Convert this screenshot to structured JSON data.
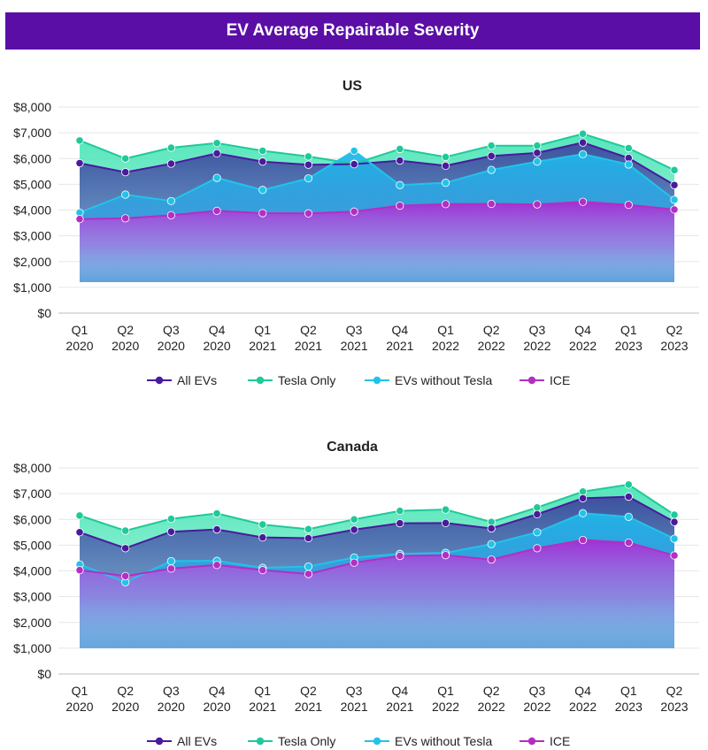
{
  "page_title": "EV Average Repairable Severity",
  "legend": [
    {
      "name": "All EVs",
      "color": "#4a1a9e"
    },
    {
      "name": "Tesla Only",
      "color": "#1fc99a"
    },
    {
      "name": "EVs without Tesla",
      "color": "#22c3ea"
    },
    {
      "name": "ICE",
      "color": "#b42ec4"
    }
  ],
  "chart_data": [
    {
      "type": "area",
      "title": "US",
      "xlabel": "",
      "ylabel": "",
      "ylim": [
        0,
        8000
      ],
      "y_ticks": [
        "$0",
        "$1,000",
        "$2,000",
        "$3,000",
        "$4,000",
        "$5,000",
        "$6,000",
        "$7,000",
        "$8,000"
      ],
      "categories": [
        [
          "Q1",
          "2020"
        ],
        [
          "Q2",
          "2020"
        ],
        [
          "Q3",
          "2020"
        ],
        [
          "Q4",
          "2020"
        ],
        [
          "Q1",
          "2021"
        ],
        [
          "Q2",
          "2021"
        ],
        [
          "Q3",
          "2021"
        ],
        [
          "Q4",
          "2021"
        ],
        [
          "Q1",
          "2022"
        ],
        [
          "Q2",
          "2022"
        ],
        [
          "Q3",
          "2022"
        ],
        [
          "Q4",
          "2022"
        ],
        [
          "Q1",
          "2023"
        ],
        [
          "Q2",
          "2023"
        ]
      ],
      "series": [
        {
          "name": "Tesla Only",
          "values": [
            6700,
            6000,
            6420,
            6600,
            6300,
            6080,
            5800,
            6370,
            6060,
            6500,
            6500,
            6960,
            6400,
            5550
          ]
        },
        {
          "name": "All EVs",
          "values": [
            5820,
            5470,
            5800,
            6200,
            5880,
            5760,
            5780,
            5920,
            5720,
            6100,
            6220,
            6620,
            6020,
            4970
          ]
        },
        {
          "name": "EVs without Tesla",
          "values": [
            3900,
            4600,
            4350,
            5250,
            4780,
            5230,
            6300,
            4970,
            5060,
            5560,
            5880,
            6170,
            5770,
            4400
          ]
        },
        {
          "name": "ICE",
          "values": [
            3650,
            3680,
            3800,
            3970,
            3880,
            3870,
            3940,
            4170,
            4230,
            4240,
            4220,
            4320,
            4200,
            4020
          ]
        }
      ]
    },
    {
      "type": "area",
      "title": "Canada",
      "xlabel": "",
      "ylabel": "",
      "ylim": [
        0,
        8000
      ],
      "y_ticks": [
        "$0",
        "$1,000",
        "$2,000",
        "$3,000",
        "$4,000",
        "$5,000",
        "$6,000",
        "$7,000",
        "$8,000"
      ],
      "categories": [
        [
          "Q1",
          "2020"
        ],
        [
          "Q2",
          "2020"
        ],
        [
          "Q3",
          "2020"
        ],
        [
          "Q4",
          "2020"
        ],
        [
          "Q1",
          "2021"
        ],
        [
          "Q2",
          "2021"
        ],
        [
          "Q3",
          "2021"
        ],
        [
          "Q4",
          "2021"
        ],
        [
          "Q1",
          "2022"
        ],
        [
          "Q2",
          "2022"
        ],
        [
          "Q3",
          "2022"
        ],
        [
          "Q4",
          "2022"
        ],
        [
          "Q1",
          "2023"
        ],
        [
          "Q2",
          "2023"
        ]
      ],
      "series": [
        {
          "name": "Tesla Only",
          "values": [
            6150,
            5560,
            6020,
            6230,
            5800,
            5620,
            6000,
            6330,
            6380,
            5900,
            6460,
            7080,
            7350,
            6180
          ]
        },
        {
          "name": "All EVs",
          "values": [
            5500,
            4880,
            5520,
            5610,
            5300,
            5270,
            5600,
            5850,
            5860,
            5650,
            6200,
            6820,
            6880,
            5900
          ]
        },
        {
          "name": "EVs without Tesla",
          "values": [
            4250,
            3560,
            4380,
            4390,
            4120,
            4170,
            4520,
            4660,
            4700,
            5040,
            5500,
            6240,
            6100,
            5250
          ]
        },
        {
          "name": "ICE",
          "values": [
            4030,
            3800,
            4090,
            4230,
            4030,
            3880,
            4320,
            4580,
            4610,
            4440,
            4880,
            5200,
            5100,
            4600
          ]
        }
      ]
    }
  ]
}
